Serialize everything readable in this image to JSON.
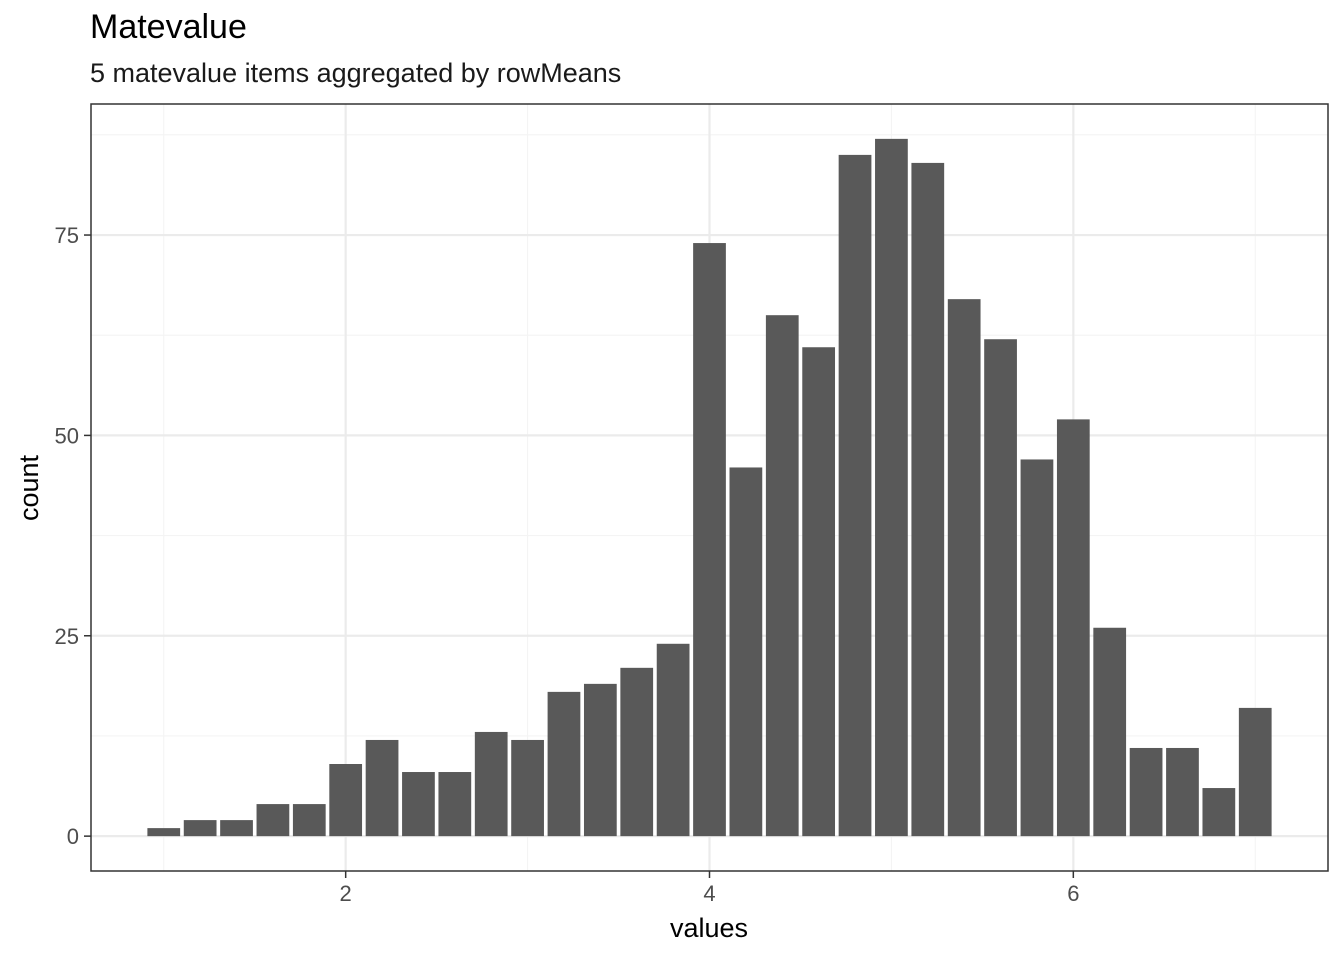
{
  "chart_data": {
    "type": "bar",
    "title": "Matevalue",
    "subtitle": "5 matevalue items aggregated by rowMeans",
    "xlabel": "values",
    "ylabel": "count",
    "x": [
      1.0,
      1.2,
      1.4,
      1.6,
      1.8,
      2.0,
      2.2,
      2.4,
      2.6,
      2.8,
      3.0,
      3.2,
      3.4,
      3.6,
      3.8,
      4.0,
      4.2,
      4.4,
      4.6,
      4.8,
      5.0,
      5.2,
      5.4,
      5.6,
      5.8,
      6.0,
      6.2,
      6.4,
      6.6,
      6.8,
      7.0
    ],
    "values": [
      1,
      2,
      2,
      4,
      4,
      9,
      12,
      8,
      8,
      13,
      12,
      18,
      19,
      21,
      24,
      74,
      46,
      65,
      61,
      85,
      87,
      84,
      67,
      62,
      47,
      52,
      26,
      11,
      11,
      6,
      16
    ],
    "xlim": [
      0.6,
      7.4
    ],
    "ylim": [
      -4.35,
      91.35
    ],
    "x_ticks": [
      "2",
      "4",
      "6"
    ],
    "y_ticks": [
      "0",
      "25",
      "50",
      "75"
    ],
    "grid": true,
    "legend": "none",
    "colors": {
      "bar": "#595959",
      "grid_major": "#ebebeb",
      "grid_minor": "#f4f4f4",
      "panel_border": "#333333"
    }
  }
}
